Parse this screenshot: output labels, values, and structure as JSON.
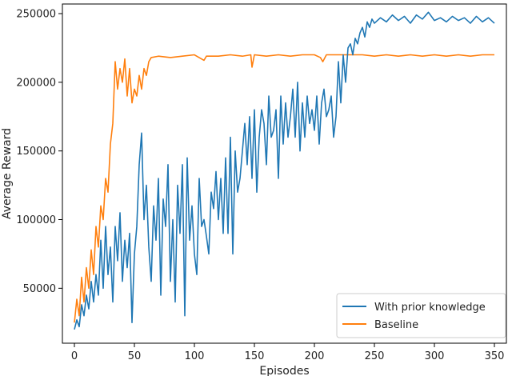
{
  "chart_data": {
    "type": "line",
    "title": "",
    "xlabel": "Episodes",
    "ylabel": "Average Reward",
    "xlim": [
      -10,
      360
    ],
    "ylim": [
      10000,
      257000
    ],
    "x_ticks": [
      0,
      50,
      100,
      150,
      200,
      250,
      300,
      350
    ],
    "y_ticks": [
      50000,
      100000,
      150000,
      200000,
      250000
    ],
    "grid": false,
    "legend_position": "lower-right",
    "series": [
      {
        "name": "With prior knowledge",
        "color": "#1f77b4",
        "points": [
          [
            0,
            20000
          ],
          [
            2,
            27000
          ],
          [
            4,
            22000
          ],
          [
            6,
            38000
          ],
          [
            8,
            30000
          ],
          [
            10,
            45000
          ],
          [
            12,
            35000
          ],
          [
            14,
            55000
          ],
          [
            16,
            40000
          ],
          [
            18,
            60000
          ],
          [
            20,
            45000
          ],
          [
            22,
            85000
          ],
          [
            24,
            50000
          ],
          [
            26,
            95000
          ],
          [
            28,
            60000
          ],
          [
            30,
            80000
          ],
          [
            32,
            40000
          ],
          [
            34,
            95000
          ],
          [
            36,
            70000
          ],
          [
            38,
            105000
          ],
          [
            40,
            55000
          ],
          [
            42,
            85000
          ],
          [
            44,
            65000
          ],
          [
            46,
            90000
          ],
          [
            48,
            25000
          ],
          [
            50,
            75000
          ],
          [
            52,
            95000
          ],
          [
            54,
            140000
          ],
          [
            56,
            163000
          ],
          [
            58,
            100000
          ],
          [
            60,
            125000
          ],
          [
            62,
            80000
          ],
          [
            64,
            55000
          ],
          [
            66,
            110000
          ],
          [
            68,
            85000
          ],
          [
            70,
            130000
          ],
          [
            72,
            45000
          ],
          [
            74,
            115000
          ],
          [
            76,
            95000
          ],
          [
            78,
            140000
          ],
          [
            80,
            55000
          ],
          [
            82,
            100000
          ],
          [
            84,
            40000
          ],
          [
            86,
            125000
          ],
          [
            88,
            90000
          ],
          [
            90,
            140000
          ],
          [
            92,
            30000
          ],
          [
            94,
            145000
          ],
          [
            96,
            85000
          ],
          [
            98,
            110000
          ],
          [
            100,
            75000
          ],
          [
            102,
            60000
          ],
          [
            104,
            130000
          ],
          [
            106,
            95000
          ],
          [
            108,
            100000
          ],
          [
            110,
            88000
          ],
          [
            112,
            75000
          ],
          [
            114,
            120000
          ],
          [
            116,
            108000
          ],
          [
            118,
            135000
          ],
          [
            120,
            100000
          ],
          [
            122,
            130000
          ],
          [
            124,
            90000
          ],
          [
            126,
            145000
          ],
          [
            128,
            90000
          ],
          [
            130,
            160000
          ],
          [
            132,
            75000
          ],
          [
            134,
            150000
          ],
          [
            136,
            120000
          ],
          [
            138,
            130000
          ],
          [
            140,
            150000
          ],
          [
            142,
            170000
          ],
          [
            144,
            140000
          ],
          [
            146,
            175000
          ],
          [
            148,
            130000
          ],
          [
            150,
            180000
          ],
          [
            152,
            120000
          ],
          [
            154,
            160000
          ],
          [
            156,
            180000
          ],
          [
            158,
            170000
          ],
          [
            160,
            140000
          ],
          [
            162,
            190000
          ],
          [
            164,
            160000
          ],
          [
            166,
            165000
          ],
          [
            168,
            180000
          ],
          [
            170,
            130000
          ],
          [
            172,
            190000
          ],
          [
            174,
            155000
          ],
          [
            176,
            185000
          ],
          [
            178,
            160000
          ],
          [
            180,
            175000
          ],
          [
            182,
            195000
          ],
          [
            184,
            160000
          ],
          [
            186,
            200000
          ],
          [
            188,
            150000
          ],
          [
            190,
            185000
          ],
          [
            192,
            160000
          ],
          [
            194,
            190000
          ],
          [
            196,
            170000
          ],
          [
            198,
            180000
          ],
          [
            200,
            165000
          ],
          [
            202,
            190000
          ],
          [
            204,
            155000
          ],
          [
            206,
            185000
          ],
          [
            208,
            195000
          ],
          [
            210,
            175000
          ],
          [
            212,
            180000
          ],
          [
            214,
            190000
          ],
          [
            216,
            160000
          ],
          [
            218,
            175000
          ],
          [
            220,
            215000
          ],
          [
            222,
            185000
          ],
          [
            224,
            220000
          ],
          [
            226,
            200000
          ],
          [
            228,
            225000
          ],
          [
            230,
            228000
          ],
          [
            232,
            220000
          ],
          [
            234,
            232000
          ],
          [
            236,
            228000
          ],
          [
            238,
            236000
          ],
          [
            240,
            240000
          ],
          [
            242,
            233000
          ],
          [
            244,
            244000
          ],
          [
            246,
            240000
          ],
          [
            248,
            246000
          ],
          [
            250,
            243000
          ],
          [
            255,
            247000
          ],
          [
            260,
            244000
          ],
          [
            265,
            249000
          ],
          [
            270,
            245000
          ],
          [
            275,
            248000
          ],
          [
            280,
            243000
          ],
          [
            285,
            249000
          ],
          [
            290,
            246000
          ],
          [
            295,
            251000
          ],
          [
            300,
            245000
          ],
          [
            305,
            247000
          ],
          [
            310,
            244000
          ],
          [
            315,
            248000
          ],
          [
            320,
            245000
          ],
          [
            325,
            247000
          ],
          [
            330,
            243000
          ],
          [
            335,
            248000
          ],
          [
            340,
            244000
          ],
          [
            345,
            247000
          ],
          [
            350,
            243000
          ]
        ]
      },
      {
        "name": "Baseline",
        "color": "#ff7f0e",
        "points": [
          [
            0,
            25000
          ],
          [
            2,
            42000
          ],
          [
            4,
            30000
          ],
          [
            6,
            58000
          ],
          [
            8,
            40000
          ],
          [
            10,
            65000
          ],
          [
            12,
            50000
          ],
          [
            14,
            78000
          ],
          [
            16,
            60000
          ],
          [
            18,
            95000
          ],
          [
            20,
            80000
          ],
          [
            22,
            110000
          ],
          [
            24,
            100000
          ],
          [
            26,
            130000
          ],
          [
            28,
            120000
          ],
          [
            30,
            155000
          ],
          [
            32,
            170000
          ],
          [
            34,
            215000
          ],
          [
            36,
            195000
          ],
          [
            38,
            210000
          ],
          [
            40,
            200000
          ],
          [
            42,
            217000
          ],
          [
            44,
            190000
          ],
          [
            46,
            210000
          ],
          [
            48,
            185000
          ],
          [
            50,
            195000
          ],
          [
            52,
            190000
          ],
          [
            54,
            205000
          ],
          [
            56,
            195000
          ],
          [
            58,
            210000
          ],
          [
            60,
            205000
          ],
          [
            62,
            215000
          ],
          [
            64,
            218000
          ],
          [
            70,
            219000
          ],
          [
            80,
            218000
          ],
          [
            90,
            219000
          ],
          [
            100,
            220000
          ],
          [
            108,
            216000
          ],
          [
            110,
            219000
          ],
          [
            120,
            219000
          ],
          [
            130,
            220000
          ],
          [
            140,
            219000
          ],
          [
            147,
            220000
          ],
          [
            148,
            211000
          ],
          [
            150,
            220000
          ],
          [
            160,
            219000
          ],
          [
            170,
            220000
          ],
          [
            180,
            219000
          ],
          [
            190,
            220000
          ],
          [
            200,
            220000
          ],
          [
            205,
            218000
          ],
          [
            207,
            215000
          ],
          [
            210,
            220000
          ],
          [
            220,
            220000
          ],
          [
            230,
            220000
          ],
          [
            240,
            220000
          ],
          [
            250,
            219000
          ],
          [
            260,
            220000
          ],
          [
            270,
            219000
          ],
          [
            280,
            220000
          ],
          [
            290,
            219000
          ],
          [
            300,
            220000
          ],
          [
            310,
            219000
          ],
          [
            320,
            220000
          ],
          [
            330,
            219000
          ],
          [
            340,
            220000
          ],
          [
            350,
            220000
          ]
        ]
      }
    ]
  }
}
